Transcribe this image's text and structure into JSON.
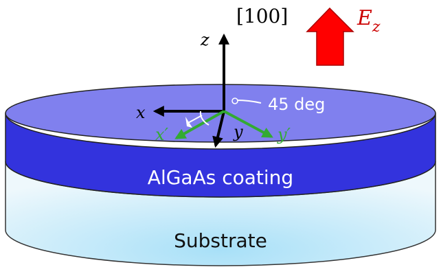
{
  "direction_label": "[100]",
  "axes": {
    "z": "z",
    "x": "x",
    "y": "y",
    "x_prime": "x′",
    "y_prime": "y′"
  },
  "field": {
    "E": "E",
    "sub": "z"
  },
  "angle_label": "45 deg",
  "layers": {
    "coating": "AlGaAs coating",
    "substrate": "Substrate"
  },
  "colors": {
    "coating_top": "#8080ee",
    "coating_side": "#3333dd",
    "substrate_center": "#a8e0f8",
    "substrate_edge": "#e8f6fc",
    "axis_black": "#000000",
    "axis_green": "#33aa33",
    "arrow_red": "#ff0000",
    "field_label": "#cc0000"
  }
}
